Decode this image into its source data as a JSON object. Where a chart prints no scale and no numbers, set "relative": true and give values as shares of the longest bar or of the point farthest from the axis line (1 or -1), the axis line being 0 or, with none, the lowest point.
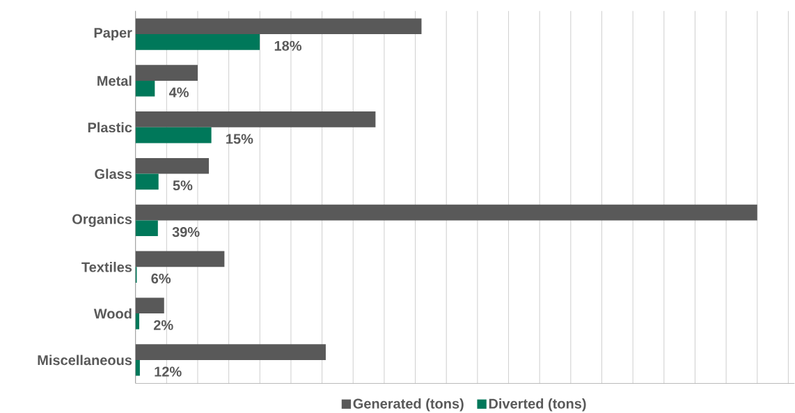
{
  "chart_data": {
    "type": "bar",
    "orientation": "horizontal",
    "relative": true,
    "categories": [
      "Paper",
      "Metal",
      "Plastic",
      "Glass",
      "Organics",
      "Textiles",
      "Wood",
      "Miscellaneous"
    ],
    "series": [
      {
        "name": "Generated (tons)",
        "color": "#595959",
        "values": [
          0.46,
          0.1,
          0.386,
          0.118,
          1,
          0.143,
          0.046,
          0.306
        ]
      },
      {
        "name": "Diverted (tons)",
        "color": "#00785a",
        "values": [
          0.2,
          0.031,
          0.122,
          0.037,
          0.036,
          0.002,
          0.006,
          0.007
        ]
      }
    ],
    "annotations": [
      "18%",
      "4%",
      "15%",
      "5%",
      "39%",
      "6%",
      "2%",
      "12%"
    ],
    "grid": "x",
    "legend": "bottom"
  }
}
